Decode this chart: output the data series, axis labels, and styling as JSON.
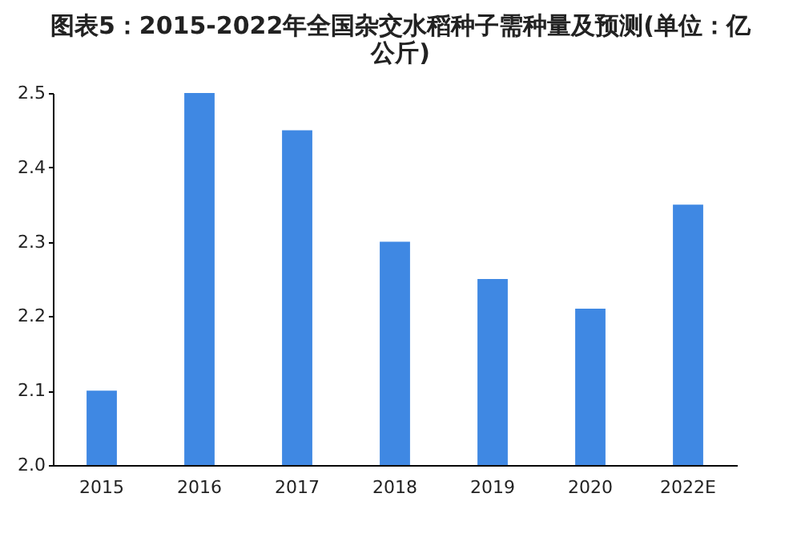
{
  "chart_data": {
    "type": "bar",
    "title": "图表5：2015-2022年全国杂交水稻种子需种量及预测(单位：亿公斤)",
    "categories": [
      "2015",
      "2016",
      "2017",
      "2018",
      "2019",
      "2020",
      "2022E"
    ],
    "values": [
      2.1,
      2.5,
      2.45,
      2.3,
      2.25,
      2.21,
      2.35
    ],
    "color": "#3f88e3",
    "ylim": [
      2.0,
      2.5
    ],
    "yticks": [
      {
        "value": 2.0,
        "label": "2.0"
      },
      2.1,
      2.2,
      2.3,
      2.4,
      2.5
    ],
    "grid": false
  }
}
